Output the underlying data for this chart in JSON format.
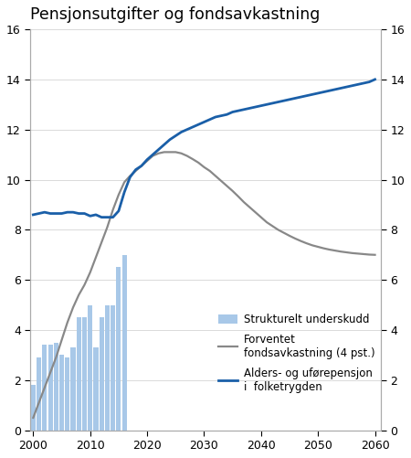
{
  "title": "Pensjonsutgifter og fondsavkastning",
  "ylim": [
    0,
    16
  ],
  "yticks": [
    0,
    2,
    4,
    6,
    8,
    10,
    12,
    14,
    16
  ],
  "xlim": [
    1999.5,
    2061
  ],
  "xticks": [
    2000,
    2010,
    2020,
    2030,
    2040,
    2050,
    2060
  ],
  "bar_years": [
    2000,
    2001,
    2002,
    2003,
    2004,
    2005,
    2006,
    2007,
    2008,
    2009,
    2010,
    2011,
    2012,
    2013,
    2014,
    2015,
    2016
  ],
  "bar_values": [
    1.8,
    2.9,
    3.4,
    3.4,
    3.5,
    3.0,
    2.9,
    3.3,
    4.5,
    4.5,
    5.0,
    3.3,
    4.5,
    5.0,
    5.0,
    6.5,
    7.0
  ],
  "bar_color": "#a8c8e8",
  "gray_line_x": [
    2000,
    2001,
    2002,
    2003,
    2004,
    2005,
    2006,
    2007,
    2008,
    2009,
    2010,
    2011,
    2012,
    2013,
    2014,
    2015,
    2016,
    2017,
    2018,
    2019,
    2020,
    2021,
    2022,
    2023,
    2024,
    2025,
    2026,
    2027,
    2028,
    2029,
    2030,
    2031,
    2032,
    2033,
    2034,
    2035,
    2036,
    2037,
    2038,
    2039,
    2040,
    2041,
    2042,
    2043,
    2044,
    2045,
    2046,
    2047,
    2048,
    2049,
    2050,
    2051,
    2052,
    2053,
    2054,
    2055,
    2056,
    2057,
    2058,
    2059,
    2060
  ],
  "gray_line_y": [
    0.5,
    1.1,
    1.7,
    2.3,
    2.9,
    3.6,
    4.3,
    4.9,
    5.4,
    5.8,
    6.3,
    6.9,
    7.5,
    8.1,
    8.8,
    9.4,
    9.9,
    10.15,
    10.35,
    10.55,
    10.75,
    10.95,
    11.05,
    11.1,
    11.1,
    11.1,
    11.05,
    10.95,
    10.82,
    10.68,
    10.5,
    10.35,
    10.15,
    9.95,
    9.75,
    9.55,
    9.33,
    9.1,
    8.9,
    8.7,
    8.5,
    8.3,
    8.15,
    8.0,
    7.88,
    7.76,
    7.65,
    7.55,
    7.46,
    7.38,
    7.32,
    7.26,
    7.21,
    7.17,
    7.13,
    7.1,
    7.07,
    7.05,
    7.03,
    7.01,
    7.0
  ],
  "gray_line_color": "#888888",
  "blue_line_x": [
    2000,
    2001,
    2002,
    2003,
    2004,
    2005,
    2006,
    2007,
    2008,
    2009,
    2010,
    2011,
    2012,
    2013,
    2014,
    2015,
    2016,
    2017,
    2018,
    2019,
    2020,
    2021,
    2022,
    2023,
    2024,
    2025,
    2026,
    2027,
    2028,
    2029,
    2030,
    2031,
    2032,
    2033,
    2034,
    2035,
    2036,
    2037,
    2038,
    2039,
    2040,
    2041,
    2042,
    2043,
    2044,
    2045,
    2046,
    2047,
    2048,
    2049,
    2050,
    2051,
    2052,
    2053,
    2054,
    2055,
    2056,
    2057,
    2058,
    2059,
    2060
  ],
  "blue_line_y": [
    8.6,
    8.65,
    8.7,
    8.65,
    8.65,
    8.65,
    8.7,
    8.7,
    8.65,
    8.65,
    8.55,
    8.6,
    8.5,
    8.5,
    8.5,
    8.75,
    9.5,
    10.1,
    10.4,
    10.55,
    10.8,
    11.0,
    11.2,
    11.4,
    11.6,
    11.75,
    11.9,
    12.0,
    12.1,
    12.2,
    12.3,
    12.4,
    12.5,
    12.55,
    12.6,
    12.7,
    12.75,
    12.8,
    12.85,
    12.9,
    12.95,
    13.0,
    13.05,
    13.1,
    13.15,
    13.2,
    13.25,
    13.3,
    13.35,
    13.4,
    13.45,
    13.5,
    13.55,
    13.6,
    13.65,
    13.7,
    13.75,
    13.8,
    13.85,
    13.9,
    14.0
  ],
  "blue_line_color": "#1a5fa8",
  "legend_label_bar": "Strukturelt underskudd",
  "legend_label_gray": "Forventet\nfondsavkastning (4 pst.)",
  "legend_label_blue": "Alders- og uførepensjon\ni  folketrygden",
  "bar_color_legend": "#a8c8e8",
  "gray_line_color_legend": "#888888",
  "blue_line_color_legend": "#1a5fa8"
}
